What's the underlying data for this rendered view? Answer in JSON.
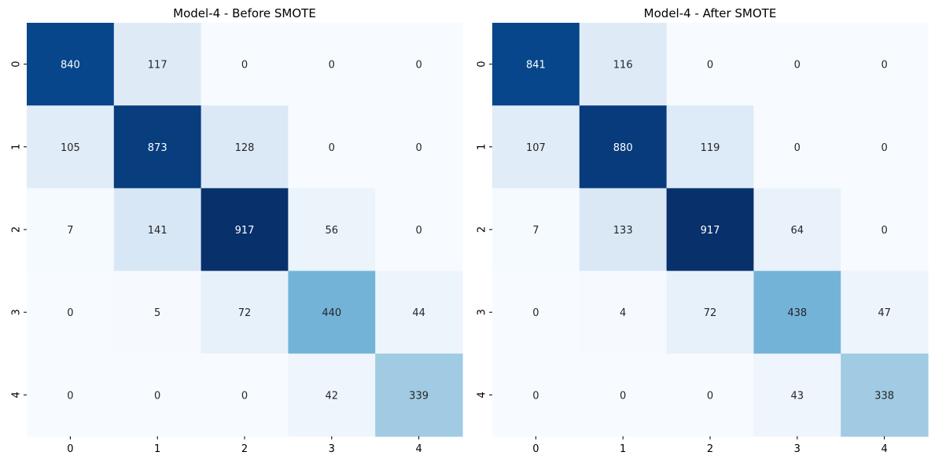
{
  "chart_data": [
    {
      "type": "heatmap",
      "title": "Model-4 - Before SMOTE",
      "x_categories": [
        "0",
        "1",
        "2",
        "3",
        "4"
      ],
      "y_categories": [
        "0",
        "1",
        "2",
        "3",
        "4"
      ],
      "values": [
        [
          840,
          117,
          0,
          0,
          0
        ],
        [
          105,
          873,
          128,
          0,
          0
        ],
        [
          7,
          141,
          917,
          56,
          0
        ],
        [
          0,
          5,
          72,
          440,
          44
        ],
        [
          0,
          0,
          0,
          42,
          339
        ]
      ],
      "colormap": "Blues",
      "colorbar": false,
      "annotated": true
    },
    {
      "type": "heatmap",
      "title": "Model-4 - After SMOTE",
      "x_categories": [
        "0",
        "1",
        "2",
        "3",
        "4"
      ],
      "y_categories": [
        "0",
        "1",
        "2",
        "3",
        "4"
      ],
      "values": [
        [
          841,
          116,
          0,
          0,
          0
        ],
        [
          107,
          880,
          119,
          0,
          0
        ],
        [
          7,
          133,
          917,
          64,
          0
        ],
        [
          0,
          4,
          72,
          438,
          47
        ],
        [
          0,
          0,
          0,
          43,
          338
        ]
      ],
      "colormap": "Blues",
      "colorbar": false,
      "annotated": true
    }
  ]
}
